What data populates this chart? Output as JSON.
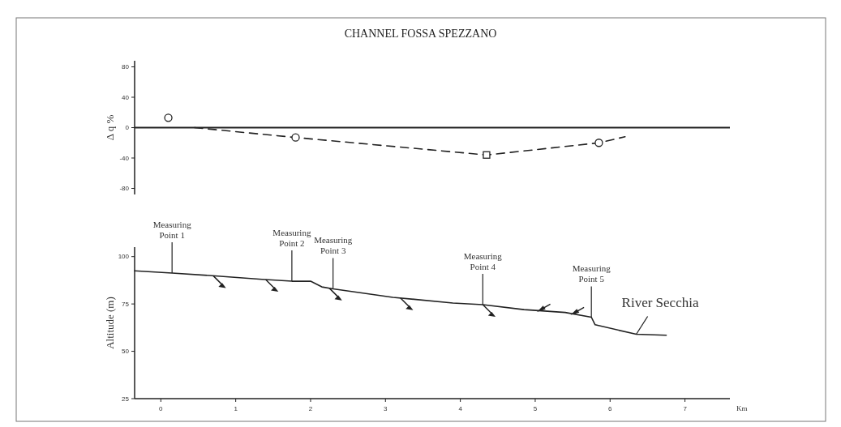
{
  "chart_data": [
    {
      "type": "line",
      "title": "CHANNEL FOSSA SPEZZANO",
      "ylabel": "Δ q %",
      "xlim": [
        -0.35,
        7.6
      ],
      "ylim": [
        -88,
        88
      ],
      "yticks": [
        80,
        40,
        0,
        -40,
        -80
      ],
      "tick_labels": "y",
      "ref_lines": [
        {
          "axis": "y",
          "value": 0,
          "color": "#222222",
          "line_style": "solid"
        }
      ],
      "series": [
        {
          "color": "#222222",
          "line_style": "dashed",
          "marker": "none",
          "x": [
            0.45,
            1.8,
            4.35,
            5.85,
            6.2
          ],
          "values": [
            0,
            -13,
            -36,
            -20,
            -12
          ]
        },
        {
          "type": "scatter",
          "color": "#222222",
          "marker": "circle",
          "x": [
            0.1,
            1.8,
            5.85
          ],
          "values": [
            13,
            -13,
            -20
          ]
        },
        {
          "type": "scatter",
          "color": "#222222",
          "marker": "square",
          "x": [
            4.35
          ],
          "values": [
            -36
          ]
        }
      ]
    },
    {
      "type": "line",
      "ylabel": "Altitude (m)",
      "xlabel": "Km",
      "xlim": [
        -0.35,
        7.6
      ],
      "ylim": [
        25,
        105
      ],
      "xticks": [
        0,
        1,
        2,
        3,
        4,
        5,
        6,
        7
      ],
      "yticks": [
        25,
        50,
        75,
        100
      ],
      "series": [
        {
          "color": "#222222",
          "line_style": "solid",
          "marker": "none",
          "x": [
            -0.35,
            0.15,
            0.65,
            1.35,
            1.75,
            2.0,
            2.15,
            2.3,
            3.1,
            3.9,
            4.3,
            4.85,
            5.4,
            5.75,
            5.8,
            6.35,
            6.75
          ],
          "values": [
            92.5,
            91.3,
            90,
            88,
            87,
            87,
            84,
            83,
            78.5,
            75.5,
            74.6,
            72,
            70.5,
            68,
            64,
            59,
            58.5
          ]
        }
      ],
      "annotations": [
        {
          "text": "Measuring Point 1",
          "x": 0.15,
          "y": 91.3
        },
        {
          "text": "Measuring Point 2",
          "x": 1.75,
          "y": 87
        },
        {
          "text": "Measuring Point 3",
          "x": 2.3,
          "y": 83
        },
        {
          "text": "Measuring Point 4",
          "x": 4.3,
          "y": 74.6
        },
        {
          "text": "Measuring Point 5",
          "x": 5.75,
          "y": 68
        },
        {
          "text": "River Secchia",
          "x": 6.35,
          "y": 59
        }
      ]
    }
  ]
}
